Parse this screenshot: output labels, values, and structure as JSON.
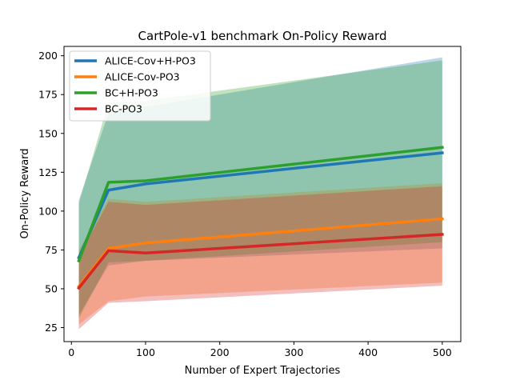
{
  "chart_data": {
    "type": "line",
    "title": "CartPole-v1 benchmark On-Policy Reward",
    "xlabel": "Number of Expert Trajectories",
    "ylabel": "On-Policy Reward",
    "xlim": [
      -10,
      525
    ],
    "ylim": [
      16,
      206
    ],
    "xticks": [
      0,
      100,
      200,
      300,
      400,
      500
    ],
    "yticks": [
      25,
      50,
      75,
      100,
      125,
      150,
      175,
      200
    ],
    "x": [
      10,
      50,
      100,
      500
    ],
    "legend_position": "top-left",
    "grid": false,
    "series": [
      {
        "name": "ALICE-Cov+H-PO3",
        "color": "#1f77b4",
        "values": [
          70,
          113.5,
          117.5,
          137.5
        ],
        "lower": [
          33,
          65,
          68,
          76
        ],
        "upper": [
          107,
          163,
          167,
          199
        ]
      },
      {
        "name": "ALICE-Cov-PO3",
        "color": "#ff7f0e",
        "values": [
          51.5,
          76,
          79.5,
          95
        ],
        "lower": [
          27,
          42,
          45,
          54
        ],
        "upper": [
          75,
          108,
          106,
          118
        ]
      },
      {
        "name": "BC+H-PO3",
        "color": "#2ca02c",
        "values": [
          68,
          118.5,
          119.5,
          141
        ],
        "lower": [
          31,
          67,
          68,
          80
        ],
        "upper": [
          105,
          170,
          171,
          197
        ]
      },
      {
        "name": "BC-PO3",
        "color": "#d62728",
        "values": [
          50.5,
          74.5,
          73,
          85
        ],
        "lower": [
          24,
          41,
          42,
          52
        ],
        "upper": [
          71,
          106,
          104,
          116
        ]
      }
    ]
  }
}
